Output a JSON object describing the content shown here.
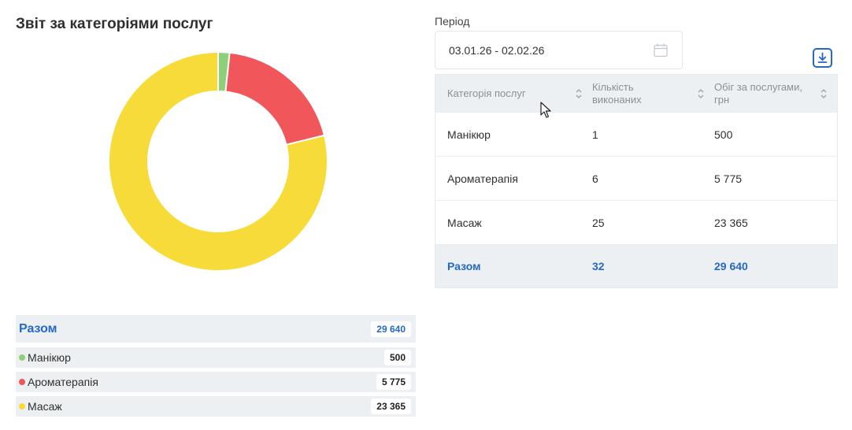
{
  "report": {
    "title": "Звіт за категоріями послуг"
  },
  "chart_data": {
    "type": "pie",
    "categories": [
      "Манікюр",
      "Ароматерапія",
      "Масаж"
    ],
    "values": [
      500,
      5775,
      23365
    ],
    "colors": [
      "#8ecf7a",
      "#f0565a",
      "#f7db38"
    ],
    "title": ""
  },
  "summary": {
    "total_label": "Разом",
    "total_value": "29 640",
    "items": [
      {
        "label": "Манікюр",
        "value": "500",
        "color": "#8ecf7a"
      },
      {
        "label": "Ароматерапія",
        "value": "5 775",
        "color": "#f0565a"
      },
      {
        "label": "Масаж",
        "value": "23 365",
        "color": "#f7db38"
      }
    ]
  },
  "period": {
    "label": "Період",
    "value": "03.01.26 - 02.02.26",
    "icon": "calendar-icon"
  },
  "download": {
    "icon": "download-icon"
  },
  "table": {
    "headers": [
      "Категорія послуг",
      "Кількість виконаних",
      "Обіг за послугами, грн"
    ],
    "rows": [
      [
        "Манікюр",
        "1",
        "500"
      ],
      [
        "Ароматерапія",
        "6",
        "5 775"
      ],
      [
        "Масаж",
        "25",
        "23 365"
      ]
    ],
    "footer": [
      "Разом",
      "32",
      "29 640"
    ]
  },
  "colors": {
    "accent": "#2468c9",
    "row_bg": "#edf0f3"
  }
}
